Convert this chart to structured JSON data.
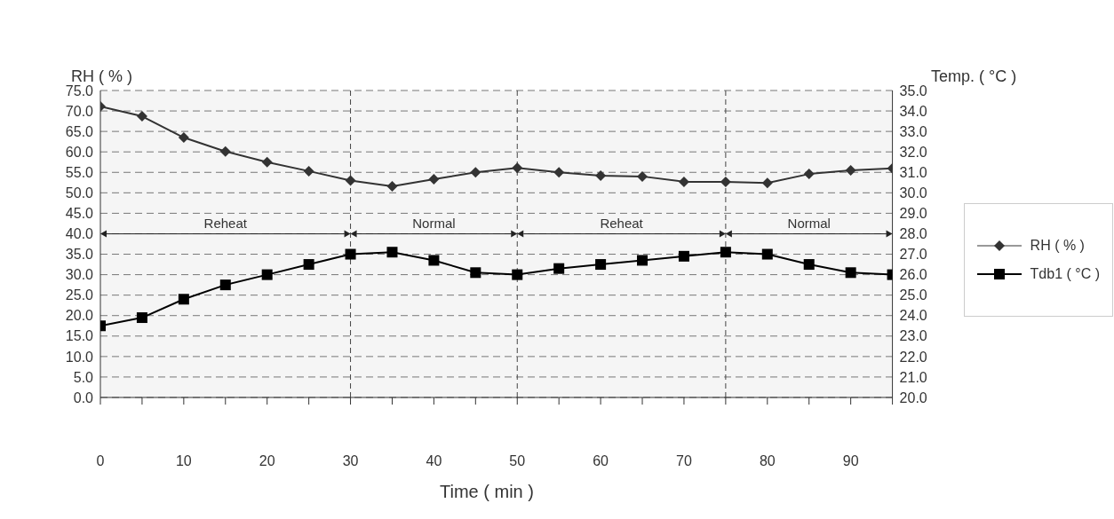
{
  "chart_data": {
    "type": "line",
    "xlabel": "Time ( min )",
    "ylabel": "RH ( % )",
    "y2label": "Temp. ( °C )",
    "x": [
      0,
      5,
      10,
      15,
      20,
      25,
      30,
      35,
      40,
      45,
      50,
      55,
      60,
      65,
      70,
      75,
      80,
      85,
      90,
      95
    ],
    "series": [
      {
        "name": "RH ( % )",
        "color": "#333333",
        "marker": "diamond",
        "values": [
          71.1,
          68.7,
          63.5,
          60.1,
          57.5,
          55.3,
          53.0,
          51.6,
          53.3,
          55.0,
          56.1,
          55.0,
          54.2,
          54.0,
          52.7,
          52.7,
          52.4,
          54.6,
          55.5,
          56.0
        ]
      },
      {
        "name": "Tdb1 ( °C )",
        "axis": "y2",
        "color": "#000000",
        "marker": "square",
        "values": [
          23.5,
          23.9,
          24.8,
          25.5,
          26.0,
          26.5,
          27.0,
          27.1,
          26.7,
          26.1,
          26.0,
          26.3,
          26.5,
          26.7,
          26.9,
          27.1,
          27.0,
          26.5,
          26.1,
          26.0
        ]
      }
    ],
    "xlim": [
      0,
      95
    ],
    "xticks": [
      0,
      {
        "value": 5,
        "label": null
      },
      10,
      {
        "value": 15,
        "label": null
      },
      20,
      {
        "value": 25,
        "label": null
      },
      30,
      {
        "value": 35,
        "label": null
      },
      40,
      {
        "value": 45,
        "label": null
      },
      50,
      {
        "value": 55,
        "label": null
      },
      60,
      {
        "value": 65,
        "label": null
      },
      70,
      {
        "value": 75,
        "label": null
      },
      80,
      {
        "value": 85,
        "label": null
      },
      90,
      {
        "value": 95,
        "label": null
      }
    ],
    "ylim": [
      0,
      75
    ],
    "yticks": [
      {
        "value": 0,
        "label": "0.0"
      },
      {
        "value": 5,
        "label": "5.0"
      },
      {
        "value": 10,
        "label": "10.0"
      },
      {
        "value": 15,
        "label": "15.0"
      },
      {
        "value": 20,
        "label": "20.0"
      },
      {
        "value": 25,
        "label": "25.0"
      },
      {
        "value": 30,
        "label": "30.0"
      },
      {
        "value": 35,
        "label": "35.0"
      },
      {
        "value": 40,
        "label": "40.0"
      },
      {
        "value": 45,
        "label": "45.0"
      },
      {
        "value": 50,
        "label": "50.0"
      },
      {
        "value": 55,
        "label": "55.0"
      },
      {
        "value": 60,
        "label": "60.0"
      },
      {
        "value": 65,
        "label": "65.0"
      },
      {
        "value": 70,
        "label": "70.0"
      },
      {
        "value": 75,
        "label": "75.0"
      }
    ],
    "y2lim": [
      20,
      35
    ],
    "y2ticks": [
      {
        "value": 20,
        "label": "20.0"
      },
      {
        "value": 21,
        "label": "21.0"
      },
      {
        "value": 22,
        "label": "22.0"
      },
      {
        "value": 23,
        "label": "23.0"
      },
      {
        "value": 24,
        "label": "24.0"
      },
      {
        "value": 25,
        "label": "25.0"
      },
      {
        "value": 26,
        "label": "26.0"
      },
      {
        "value": 27,
        "label": "27.0"
      },
      {
        "value": 28,
        "label": "28.0"
      },
      {
        "value": 29,
        "label": "29.0"
      },
      {
        "value": 30,
        "label": "30.0"
      },
      {
        "value": 31,
        "label": "31.0"
      },
      {
        "value": 32,
        "label": "32.0"
      },
      {
        "value": 33,
        "label": "33.0"
      },
      {
        "value": 34,
        "label": "34.0"
      },
      {
        "value": 35,
        "label": "35.0"
      }
    ],
    "ref_lines": [
      {
        "axis": "x",
        "value": 30,
        "line_style": "dashed"
      },
      {
        "axis": "x",
        "value": 50,
        "line_style": "dashed"
      },
      {
        "axis": "x",
        "value": 75,
        "line_style": "dashed"
      }
    ],
    "annotations": [
      "Reheat",
      "Normal",
      "Reheat",
      "Normal"
    ],
    "grid": "y",
    "legend": "right",
    "line_style": "solid"
  }
}
